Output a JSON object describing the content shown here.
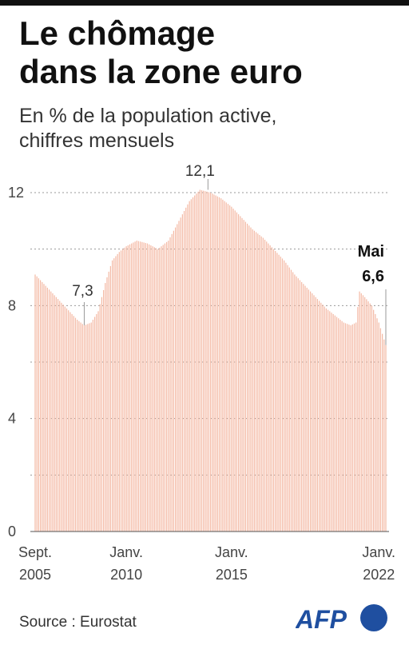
{
  "header": {
    "title_line1": "Le chômage",
    "title_line2": "dans la zone euro",
    "subtitle_line1": "En % de la population active,",
    "subtitle_line2": "chiffres mensuels"
  },
  "chart_data": {
    "type": "bar",
    "x_start": "Sept. 2005",
    "x_end": "Mai 2022",
    "frequency": "monthly",
    "ylim": [
      0,
      12.5
    ],
    "yticks": [
      0,
      4,
      8,
      12
    ],
    "grid": true,
    "colors": {
      "bar": "#f4b9a4",
      "grid": "#9a9a9a",
      "axis": "#555555",
      "annotation": "#9a9a9a"
    },
    "xtick_labels": [
      {
        "line1": "Sept.",
        "line2": "2005",
        "index": 0
      },
      {
        "line1": "Janv.",
        "line2": "2010",
        "index": 52
      },
      {
        "line1": "Janv.",
        "line2": "2015",
        "index": 112
      },
      {
        "line1": "Janv.",
        "line2": "2022",
        "index": 196
      }
    ],
    "annotations": [
      {
        "label": "7,3",
        "index": 28
      },
      {
        "label": "12,1",
        "index": 94
      },
      {
        "label_line1": "Mai",
        "label_line2": "6,6",
        "index": 200
      }
    ],
    "anchors": [
      [
        0,
        9.1
      ],
      [
        6,
        8.7
      ],
      [
        12,
        8.3
      ],
      [
        18,
        7.9
      ],
      [
        24,
        7.5
      ],
      [
        28,
        7.3
      ],
      [
        32,
        7.4
      ],
      [
        36,
        7.8
      ],
      [
        40,
        8.8
      ],
      [
        44,
        9.6
      ],
      [
        48,
        9.9
      ],
      [
        52,
        10.1
      ],
      [
        58,
        10.3
      ],
      [
        64,
        10.2
      ],
      [
        70,
        10.0
      ],
      [
        76,
        10.3
      ],
      [
        82,
        11.0
      ],
      [
        88,
        11.7
      ],
      [
        94,
        12.1
      ],
      [
        100,
        12.0
      ],
      [
        106,
        11.8
      ],
      [
        112,
        11.5
      ],
      [
        118,
        11.1
      ],
      [
        124,
        10.7
      ],
      [
        130,
        10.4
      ],
      [
        136,
        10.0
      ],
      [
        142,
        9.6
      ],
      [
        148,
        9.1
      ],
      [
        154,
        8.7
      ],
      [
        160,
        8.3
      ],
      [
        166,
        7.9
      ],
      [
        172,
        7.6
      ],
      [
        176,
        7.4
      ],
      [
        180,
        7.3
      ],
      [
        183,
        7.4
      ],
      [
        185,
        8.5
      ],
      [
        188,
        8.3
      ],
      [
        192,
        8.0
      ],
      [
        196,
        7.4
      ],
      [
        200,
        6.6
      ]
    ]
  },
  "footer": {
    "source": "Source : Eurostat",
    "logo": "AFP"
  }
}
